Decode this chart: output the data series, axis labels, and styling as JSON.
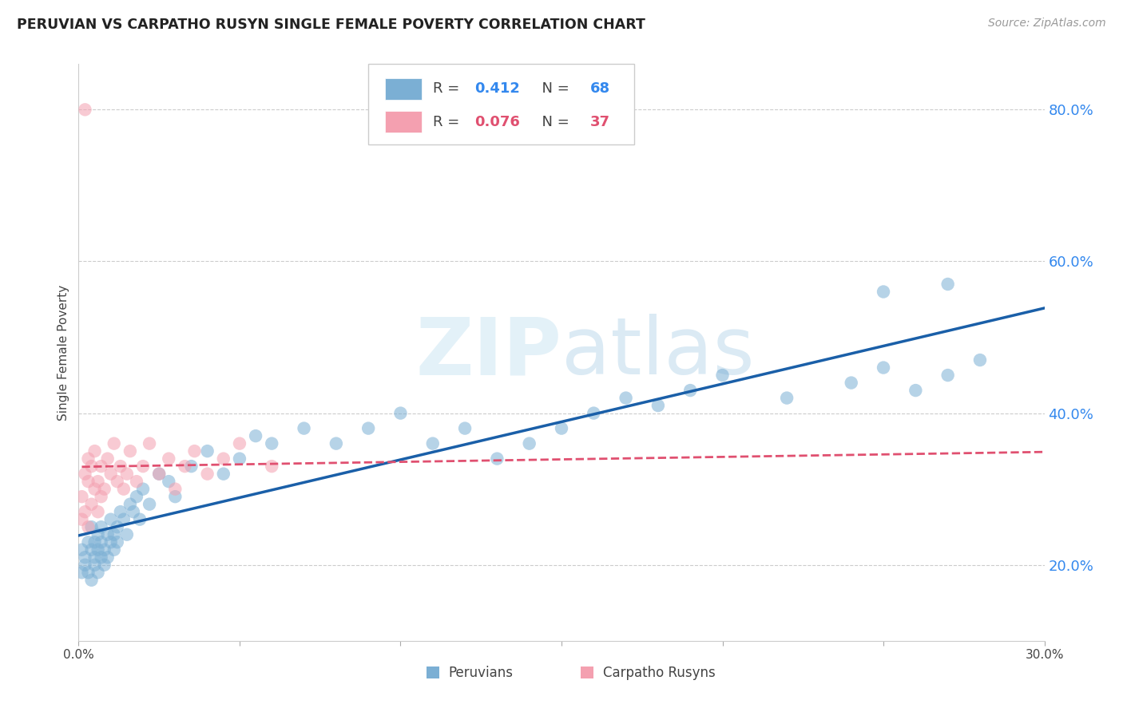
{
  "title": "PERUVIAN VS CARPATHO RUSYN SINGLE FEMALE POVERTY CORRELATION CHART",
  "source": "Source: ZipAtlas.com",
  "ylabel": "Single Female Poverty",
  "peruvians_label": "Peruvians",
  "carpatho_label": "Carpatho Rusyns",
  "peruvian_R": 0.412,
  "peruvian_N": 68,
  "carpatho_R": 0.076,
  "carpatho_N": 37,
  "xlim": [
    0.0,
    0.3
  ],
  "ylim": [
    0.1,
    0.86
  ],
  "right_yticks": [
    0.2,
    0.4,
    0.6,
    0.8
  ],
  "right_ytick_labels": [
    "20.0%",
    "40.0%",
    "60.0%",
    "80.0%"
  ],
  "peruvian_color": "#7BAFD4",
  "carpatho_color": "#F4A0B0",
  "peruvian_line_color": "#1A5FA8",
  "carpatho_line_color": "#E05070",
  "background_color": "#FFFFFF",
  "watermark": "ZIPatlas",
  "peruvians_x": [
    0.001,
    0.001,
    0.002,
    0.002,
    0.003,
    0.003,
    0.004,
    0.004,
    0.004,
    0.005,
    0.005,
    0.005,
    0.006,
    0.006,
    0.006,
    0.007,
    0.007,
    0.007,
    0.008,
    0.008,
    0.009,
    0.009,
    0.01,
    0.01,
    0.011,
    0.011,
    0.012,
    0.012,
    0.013,
    0.014,
    0.015,
    0.016,
    0.017,
    0.018,
    0.019,
    0.02,
    0.022,
    0.025,
    0.028,
    0.03,
    0.035,
    0.04,
    0.045,
    0.05,
    0.055,
    0.06,
    0.07,
    0.08,
    0.09,
    0.1,
    0.11,
    0.12,
    0.13,
    0.14,
    0.15,
    0.16,
    0.17,
    0.18,
    0.19,
    0.2,
    0.22,
    0.24,
    0.25,
    0.26,
    0.27,
    0.28,
    0.25,
    0.27
  ],
  "peruvians_y": [
    0.19,
    0.22,
    0.2,
    0.21,
    0.19,
    0.23,
    0.18,
    0.22,
    0.25,
    0.21,
    0.23,
    0.2,
    0.24,
    0.22,
    0.19,
    0.23,
    0.21,
    0.25,
    0.22,
    0.2,
    0.24,
    0.21,
    0.23,
    0.26,
    0.22,
    0.24,
    0.25,
    0.23,
    0.27,
    0.26,
    0.24,
    0.28,
    0.27,
    0.29,
    0.26,
    0.3,
    0.28,
    0.32,
    0.31,
    0.29,
    0.33,
    0.35,
    0.32,
    0.34,
    0.37,
    0.36,
    0.38,
    0.36,
    0.38,
    0.4,
    0.36,
    0.38,
    0.34,
    0.36,
    0.38,
    0.4,
    0.42,
    0.41,
    0.43,
    0.45,
    0.42,
    0.44,
    0.46,
    0.43,
    0.45,
    0.47,
    0.56,
    0.57
  ],
  "carpathos_x": [
    0.001,
    0.001,
    0.002,
    0.002,
    0.003,
    0.003,
    0.003,
    0.004,
    0.004,
    0.005,
    0.005,
    0.006,
    0.006,
    0.007,
    0.007,
    0.008,
    0.009,
    0.01,
    0.011,
    0.012,
    0.013,
    0.014,
    0.015,
    0.016,
    0.018,
    0.02,
    0.022,
    0.025,
    0.028,
    0.03,
    0.033,
    0.036,
    0.04,
    0.045,
    0.05,
    0.06,
    0.002
  ],
  "carpathos_y": [
    0.26,
    0.29,
    0.27,
    0.32,
    0.25,
    0.31,
    0.34,
    0.28,
    0.33,
    0.3,
    0.35,
    0.27,
    0.31,
    0.29,
    0.33,
    0.3,
    0.34,
    0.32,
    0.36,
    0.31,
    0.33,
    0.3,
    0.32,
    0.35,
    0.31,
    0.33,
    0.36,
    0.32,
    0.34,
    0.3,
    0.33,
    0.35,
    0.32,
    0.34,
    0.36,
    0.33,
    0.8
  ]
}
